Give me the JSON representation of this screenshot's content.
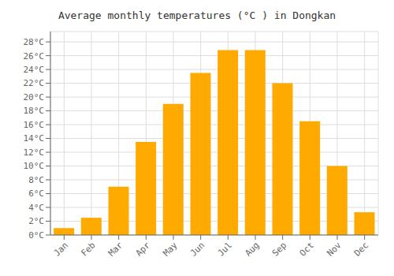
{
  "chart_data": {
    "type": "bar",
    "title": "Average monthly temperatures (°C ) in Dongkan",
    "categories": [
      "Jan",
      "Feb",
      "Mar",
      "Apr",
      "May",
      "Jun",
      "Jul",
      "Aug",
      "Sep",
      "Oct",
      "Nov",
      "Dec"
    ],
    "values": [
      1.0,
      2.5,
      7.0,
      13.5,
      19.0,
      23.5,
      26.8,
      26.8,
      22.0,
      16.5,
      10.0,
      3.3
    ],
    "color": "#FFAA00",
    "ylim": [
      0,
      29.5
    ],
    "yticks": [
      {
        "value": 0,
        "label": "0°C"
      },
      {
        "value": 2,
        "label": "2°C"
      },
      {
        "value": 4,
        "label": "4°C"
      },
      {
        "value": 6,
        "label": "6°C"
      },
      {
        "value": 8,
        "label": "8°C"
      },
      {
        "value": 10,
        "label": "10°C"
      },
      {
        "value": 12,
        "label": "12°C"
      },
      {
        "value": 14,
        "label": "14°C"
      },
      {
        "value": 16,
        "label": "16°C"
      },
      {
        "value": 18,
        "label": "18°C"
      },
      {
        "value": 20,
        "label": "20°C"
      },
      {
        "value": 22,
        "label": "22°C"
      },
      {
        "value": 24,
        "label": "24°C"
      },
      {
        "value": 26,
        "label": "26°C"
      },
      {
        "value": 28,
        "label": "28°C"
      }
    ],
    "grid": true
  }
}
